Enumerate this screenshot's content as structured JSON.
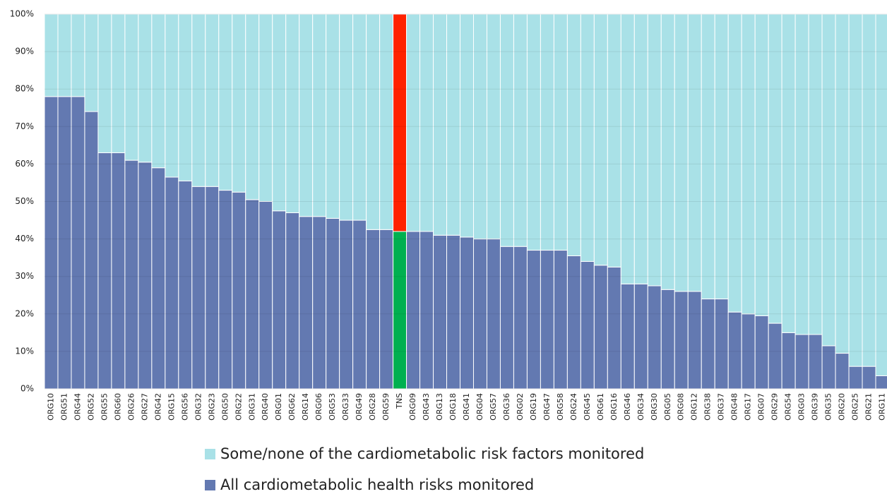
{
  "chart_data": {
    "type": "stacked_bar",
    "categories": [
      "ORG10",
      "ORG51",
      "ORG44",
      "ORG52",
      "ORG55",
      "ORG60",
      "ORG26",
      "ORG27",
      "ORG42",
      "ORG15",
      "ORG56",
      "ORG32",
      "ORG23",
      "ORG50",
      "ORG22",
      "ORG31",
      "ORG40",
      "ORG01",
      "ORG62",
      "ORG14",
      "ORG06",
      "ORG53",
      "ORG33",
      "ORG49",
      "ORG28",
      "ORG59",
      "TNS",
      "ORG09",
      "ORG43",
      "ORG13",
      "ORG18",
      "ORG41",
      "ORG04",
      "ORG57",
      "ORG36",
      "ORG02",
      "ORG19",
      "ORG47",
      "ORG58",
      "ORG24",
      "ORG45",
      "ORG61",
      "ORG16",
      "ORG46",
      "ORG34",
      "ORG30",
      "ORG05",
      "ORG08",
      "ORG12",
      "ORG38",
      "ORG37",
      "ORG48",
      "ORG17",
      "ORG07",
      "ORG29",
      "ORG54",
      "ORG03",
      "ORG39",
      "ORG35",
      "ORG20",
      "ORG25",
      "ORG21",
      "ORG11"
    ],
    "series": [
      {
        "name": "All cardiometabolic health risks monitored",
        "color": "#6379b1",
        "values": [
          78,
          78,
          78,
          74,
          63,
          63,
          61,
          60.5,
          59,
          56.5,
          55.5,
          54,
          54,
          53,
          52.5,
          50.5,
          50,
          47.5,
          47,
          46,
          46,
          45.5,
          45,
          45,
          42.5,
          42.5,
          42,
          42,
          42,
          41,
          41,
          40.5,
          40,
          40,
          38,
          38,
          37,
          37,
          37,
          35.5,
          34,
          33,
          32.5,
          28,
          28,
          27.5,
          26.5,
          26,
          26,
          24,
          24,
          20.5,
          20,
          19.5,
          17.5,
          15,
          14.5,
          14.5,
          11.5,
          9.5,
          6,
          6,
          3.5
        ]
      },
      {
        "name": "Some/none of the cardiometabolic risk factors monitored",
        "color": "#a9e1e7",
        "values": [
          22,
          22,
          22,
          26,
          37,
          37,
          39,
          39.5,
          41,
          43.5,
          44.5,
          46,
          46,
          47,
          47.5,
          49.5,
          50,
          52.5,
          53,
          54,
          54,
          54.5,
          55,
          55,
          57.5,
          57.5,
          58,
          58,
          58,
          59,
          59,
          59.5,
          60,
          60,
          62,
          62,
          63,
          63,
          63,
          64.5,
          66,
          67,
          67.5,
          72,
          72,
          72.5,
          73.5,
          74,
          74,
          76,
          76,
          79.5,
          80,
          80.5,
          82.5,
          85,
          85.5,
          85.5,
          88.5,
          90.5,
          94,
          94,
          96.5
        ]
      }
    ],
    "highlight": {
      "category": "TNS",
      "colors": [
        "#00b050",
        "#ff2200"
      ]
    },
    "ylim": [
      0,
      100
    ],
    "yticks": [
      {
        "value": 0,
        "label": "0%"
      },
      {
        "value": 10,
        "label": "10%"
      },
      {
        "value": 20,
        "label": "20%"
      },
      {
        "value": 30,
        "label": "30%"
      },
      {
        "value": 40,
        "label": "40%"
      },
      {
        "value": 50,
        "label": "50%"
      },
      {
        "value": 60,
        "label": "60%"
      },
      {
        "value": 70,
        "label": "70%"
      },
      {
        "value": 80,
        "label": "80%"
      },
      {
        "value": 90,
        "label": "90%"
      },
      {
        "value": 100,
        "label": "100%"
      }
    ],
    "grid": true
  }
}
